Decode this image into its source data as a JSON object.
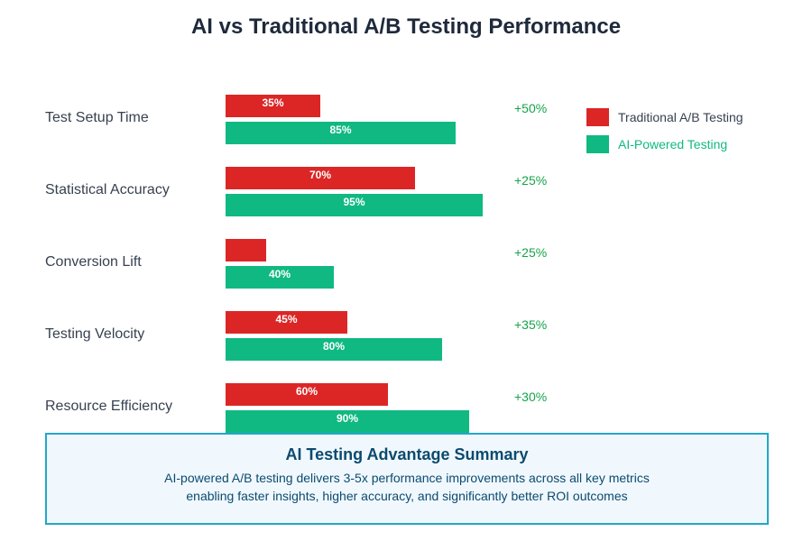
{
  "colors": {
    "traditional": "#dc2626",
    "ai": "#10b981",
    "delta": "#16a34a",
    "category_text": "#374151",
    "legend_traditional_text": "#374151",
    "legend_ai_text": "#10b981"
  },
  "chart_data": {
    "type": "bar",
    "orientation": "horizontal",
    "title": "AI vs Traditional A/B Testing Performance",
    "categories": [
      "Test Setup Time",
      "Statistical Accuracy",
      "Conversion Lift",
      "Testing Velocity",
      "Resource Efficiency"
    ],
    "series": [
      {
        "name": "Traditional A/B Testing",
        "values": [
          35,
          70,
          15,
          45,
          60
        ],
        "labels": [
          "35%",
          "70%",
          "",
          "45%",
          "60%"
        ]
      },
      {
        "name": "AI-Powered Testing",
        "values": [
          85,
          95,
          40,
          80,
          90
        ],
        "labels": [
          "85%",
          "95%",
          "40%",
          "80%",
          "90%"
        ]
      }
    ],
    "improvements": [
      "+50%",
      "+25%",
      "+25%",
      "+35%",
      "+30%"
    ],
    "xlim": [
      0,
      100
    ],
    "legend_position": "top-right",
    "grid": false
  },
  "summary": {
    "title": "AI Testing Advantage Summary",
    "line1": "AI-powered A/B testing delivers 3-5x performance improvements across all key metrics",
    "line2": "enabling faster insights, higher accuracy, and significantly better ROI outcomes"
  }
}
